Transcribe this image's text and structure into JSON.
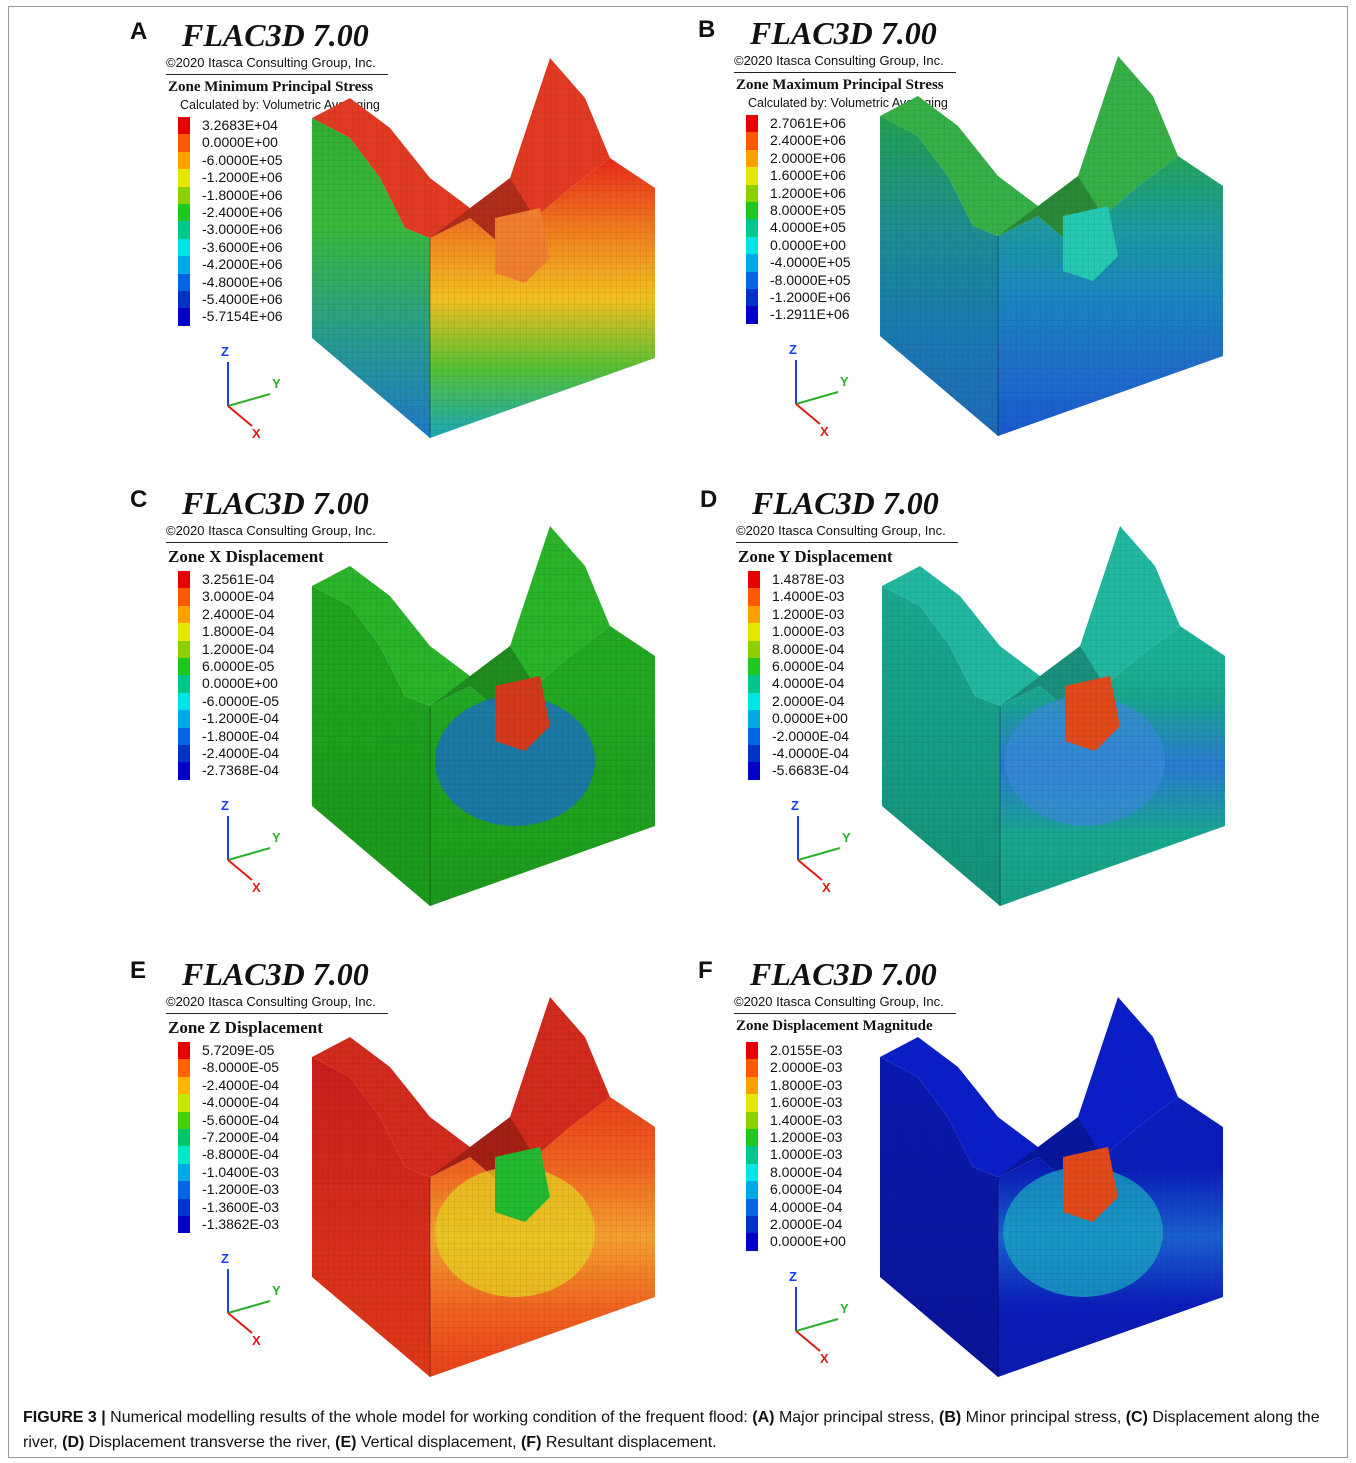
{
  "figure": {
    "software_title": "FLAC3D 7.00",
    "copyright": "©2020 Itasca Consulting Group, Inc.",
    "axis_labels": {
      "z": "Z",
      "y": "Y",
      "x": "X"
    },
    "colors": {
      "axis_z": "#1a3cff",
      "axis_y": "#2ab02a",
      "axis_x": "#e01818"
    }
  },
  "panels": [
    {
      "letter": "A",
      "quantity": "Zone Minimum Principal Stress",
      "calc": "Calculated by: Volumetric Averaging",
      "scheme": "minstress",
      "legend": [
        "3.2683E+04",
        "0.0000E+00",
        "-6.0000E+05",
        "-1.2000E+06",
        "-1.8000E+06",
        "-2.4000E+06",
        "-3.0000E+06",
        "-3.6000E+06",
        "-4.2000E+06",
        "-4.8000E+06",
        "-5.4000E+06",
        "-5.7154E+06"
      ]
    },
    {
      "letter": "B",
      "quantity": "Zone Maximum Principal Stress",
      "calc": "Calculated by: Volumetric Averaging",
      "scheme": "maxstress",
      "legend": [
        "2.7061E+06",
        "2.4000E+06",
        "2.0000E+06",
        "1.6000E+06",
        "1.2000E+06",
        "8.0000E+05",
        "4.0000E+05",
        "0.0000E+00",
        "-4.0000E+05",
        "-8.0000E+05",
        "-1.2000E+06",
        "-1.2911E+06"
      ]
    },
    {
      "letter": "C",
      "quantity": "Zone X Displacement",
      "calc": "",
      "scheme": "xdisp",
      "legend": [
        "3.2561E-04",
        "3.0000E-04",
        "2.4000E-04",
        "1.8000E-04",
        "1.2000E-04",
        "6.0000E-05",
        "0.0000E+00",
        "-6.0000E-05",
        "-1.2000E-04",
        "-1.8000E-04",
        "-2.4000E-04",
        "-2.7368E-04"
      ]
    },
    {
      "letter": "D",
      "quantity": "Zone Y Displacement",
      "calc": "",
      "scheme": "ydisp",
      "legend": [
        "1.4878E-03",
        "1.4000E-03",
        "1.2000E-03",
        "1.0000E-03",
        "8.0000E-04",
        "6.0000E-04",
        "4.0000E-04",
        "2.0000E-04",
        "0.0000E+00",
        "-2.0000E-04",
        "-4.0000E-04",
        "-5.6683E-04"
      ]
    },
    {
      "letter": "E",
      "quantity": "Zone Z Displacement",
      "calc": "",
      "scheme": "zdisp",
      "legend": [
        "5.7209E-05",
        "-8.0000E-05",
        "-2.4000E-04",
        "-4.0000E-04",
        "-5.6000E-04",
        "-7.2000E-04",
        "-8.8000E-04",
        "-1.0400E-03",
        "-1.2000E-03",
        "-1.3600E-03",
        "-1.3862E-03"
      ]
    },
    {
      "letter": "F",
      "quantity": "Zone Displacement Magnitude",
      "calc": "",
      "scheme": "magdisp",
      "legend": [
        "2.0155E-03",
        "2.0000E-03",
        "1.8000E-03",
        "1.6000E-03",
        "1.4000E-03",
        "1.2000E-03",
        "1.0000E-03",
        "8.0000E-04",
        "6.0000E-04",
        "4.0000E-04",
        "2.0000E-04",
        "0.0000E+00"
      ]
    }
  ],
  "legend_colors_12": [
    "#e60000",
    "#ff5a00",
    "#ffa000",
    "#e6e600",
    "#8cd200",
    "#1ec81e",
    "#00c88c",
    "#00e6e6",
    "#00aae6",
    "#0064e6",
    "#0032c8",
    "#0000c8"
  ],
  "legend_colors_11": [
    "#e60000",
    "#ff6400",
    "#ffb400",
    "#c8e600",
    "#46d200",
    "#00c864",
    "#00e6c8",
    "#00aae6",
    "#0064e6",
    "#0032d2",
    "#0000c8"
  ],
  "caption": {
    "label": "FIGURE 3 |",
    "intro": " Numerical modelling results of the whole model for working condition of the frequent flood: ",
    "a_tag": "(A)",
    "a_text": " Major principal stress, ",
    "b_tag": "(B)",
    "b_text": " Minor principal stress, ",
    "c_tag": "(C)",
    "c_text": " Displacement along the river, ",
    "d_tag": "(D)",
    "d_text": " Displacement transverse the river, ",
    "e_tag": "(E)",
    "e_text": " Vertical displacement, ",
    "f_tag": "(F)",
    "f_text": " Resultant displacement."
  }
}
